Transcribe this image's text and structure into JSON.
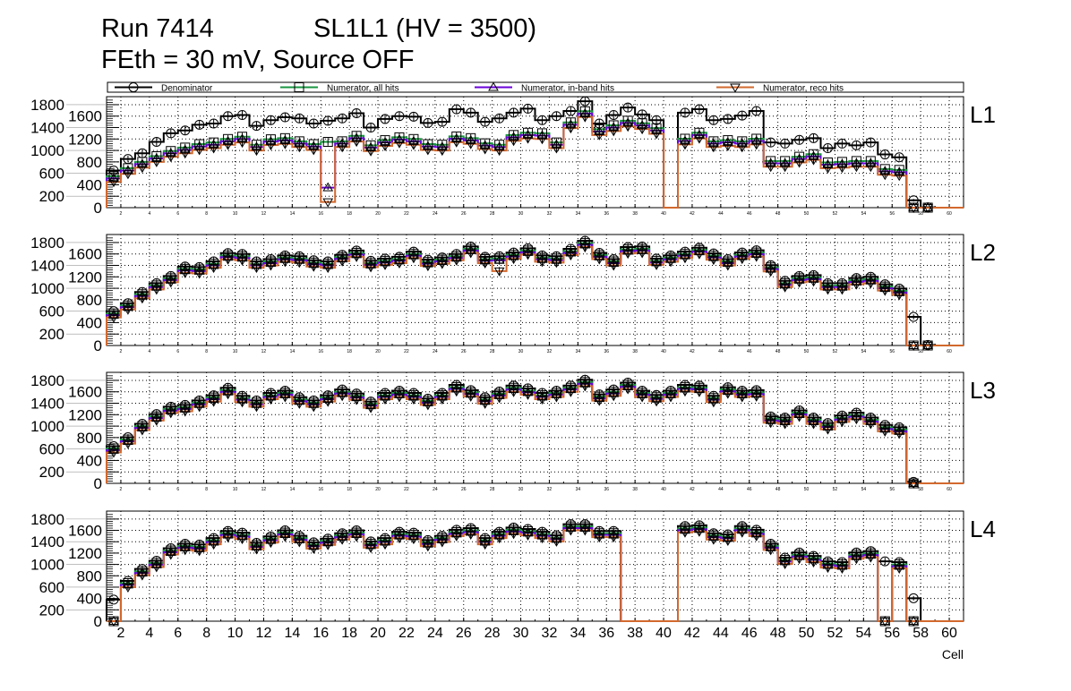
{
  "title": {
    "run": "Run 7414",
    "chamber": "SL1L1 (HV = 3500)",
    "conditions": "FEth = 30 mV, Source OFF"
  },
  "colors": {
    "denominator": "#000000",
    "numerator_all": "#1a9641",
    "numerator_inband": "#6a00d8",
    "numerator_reco": "#d2692e"
  },
  "chart_data": {
    "type": "bar",
    "style": "step-histogram",
    "xlabel": "Cell",
    "ylabel": "",
    "xlim": [
      1,
      61
    ],
    "ylim": [
      0,
      1940
    ],
    "grid": true,
    "legend_position": "top",
    "x_ticks": [
      "2",
      "4",
      "6",
      "8",
      "10",
      "12",
      "14",
      "16",
      "18",
      "20",
      "22",
      "24",
      "26",
      "28",
      "30",
      "32",
      "34",
      "36",
      "38",
      "40",
      "42",
      "44",
      "46",
      "48",
      "50",
      "52",
      "54",
      "56",
      "58",
      "60"
    ],
    "y_ticks": [
      "0",
      "200",
      "400",
      "600",
      "800",
      "1000",
      "1200",
      "1400",
      "1600",
      "1800"
    ],
    "legend": [
      {
        "key": "den",
        "label": "Denominator",
        "marker": "circle"
      },
      {
        "key": "all",
        "label": "Numerator, all hits",
        "marker": "square"
      },
      {
        "key": "inband",
        "label": "Numerator, in-band hits",
        "marker": "triangle-up"
      },
      {
        "key": "reco",
        "label": "Numerator, reco hits",
        "marker": "triangle-down"
      }
    ],
    "cells": [
      1,
      2,
      3,
      4,
      5,
      6,
      7,
      8,
      9,
      10,
      11,
      12,
      13,
      14,
      15,
      16,
      17,
      18,
      19,
      20,
      21,
      22,
      23,
      24,
      25,
      26,
      27,
      28,
      29,
      30,
      31,
      32,
      33,
      34,
      35,
      36,
      37,
      38,
      39,
      40,
      41,
      42,
      43,
      44,
      45,
      46,
      47,
      48,
      49,
      50,
      51,
      52,
      53,
      54,
      55,
      56,
      57,
      58,
      59,
      60
    ],
    "panels": [
      {
        "label": "L1",
        "series": {
          "den": [
            650,
            850,
            950,
            1150,
            1300,
            1350,
            1450,
            1470,
            1600,
            1620,
            1430,
            1530,
            1580,
            1560,
            1470,
            1520,
            1560,
            1650,
            1400,
            1550,
            1600,
            1590,
            1480,
            1500,
            1720,
            1660,
            1500,
            1560,
            1660,
            1730,
            1530,
            1600,
            1690,
            1860,
            1470,
            1620,
            1750,
            1630,
            1530,
            0,
            1660,
            1720,
            1530,
            1550,
            1610,
            1690,
            1140,
            1120,
            1185,
            1215,
            1040,
            1120,
            1090,
            1140,
            930,
            880,
            130,
            5,
            0,
            0
          ],
          "all": [
            550,
            690,
            800,
            900,
            990,
            1050,
            1110,
            1140,
            1200,
            1240,
            1100,
            1195,
            1215,
            1160,
            1110,
            1150,
            1160,
            1255,
            1090,
            1180,
            1230,
            1200,
            1110,
            1100,
            1245,
            1215,
            1125,
            1100,
            1270,
            1310,
            1300,
            1140,
            1490,
            1685,
            1370,
            1440,
            1520,
            1475,
            1390,
            0,
            1205,
            1310,
            1160,
            1180,
            1160,
            1205,
            815,
            815,
            890,
            935,
            790,
            800,
            815,
            815,
            675,
            660,
            0,
            0,
            0,
            0
          ],
          "inband": [
            510,
            650,
            760,
            860,
            950,
            1010,
            1070,
            1100,
            1160,
            1200,
            1060,
            1155,
            1175,
            1120,
            1070,
            350,
            1120,
            1215,
            1050,
            1140,
            1190,
            1160,
            1070,
            1060,
            1205,
            1175,
            1085,
            1060,
            1230,
            1270,
            1260,
            1100,
            1450,
            1645,
            1330,
            1400,
            1480,
            1435,
            1350,
            0,
            1165,
            1270,
            1120,
            1140,
            1120,
            1165,
            775,
            775,
            850,
            895,
            750,
            760,
            775,
            775,
            635,
            620,
            0,
            0,
            0,
            0
          ],
          "reco": [
            450,
            590,
            700,
            800,
            890,
            950,
            1010,
            1040,
            1100,
            1140,
            1000,
            1095,
            1115,
            1060,
            1010,
            100,
            1060,
            1155,
            990,
            1080,
            1130,
            1100,
            1010,
            1000,
            1145,
            1115,
            1025,
            1000,
            1170,
            1210,
            1200,
            1040,
            1390,
            1585,
            1270,
            1340,
            1420,
            1375,
            1290,
            0,
            1105,
            1210,
            1060,
            1080,
            1060,
            1105,
            715,
            715,
            790,
            835,
            690,
            700,
            715,
            715,
            575,
            560,
            0,
            0,
            0,
            0
          ]
        }
      },
      {
        "label": "L2",
        "series": {
          "den": [
            600,
            740,
            935,
            1090,
            1215,
            1380,
            1370,
            1470,
            1615,
            1600,
            1470,
            1510,
            1575,
            1560,
            1490,
            1470,
            1585,
            1660,
            1480,
            1520,
            1550,
            1640,
            1500,
            1540,
            1600,
            1730,
            1550,
            1560,
            1625,
            1700,
            1575,
            1560,
            1690,
            1830,
            1620,
            1510,
            1720,
            1730,
            1520,
            1575,
            1640,
            1710,
            1610,
            1510,
            1625,
            1665,
            1405,
            1130,
            1215,
            1230,
            1090,
            1090,
            1180,
            1200,
            1070,
            995,
            500,
            10,
            0,
            0
          ],
          "all": [
            560,
            700,
            895,
            1050,
            1175,
            1340,
            1330,
            1430,
            1575,
            1560,
            1430,
            1470,
            1535,
            1520,
            1450,
            1430,
            1545,
            1620,
            1440,
            1480,
            1510,
            1600,
            1460,
            1500,
            1560,
            1690,
            1510,
            1520,
            1585,
            1660,
            1535,
            1520,
            1650,
            1790,
            1580,
            1470,
            1680,
            1690,
            1480,
            1535,
            1600,
            1670,
            1570,
            1470,
            1585,
            1625,
            1365,
            1090,
            1175,
            1190,
            1050,
            1050,
            1140,
            1160,
            1030,
            955,
            0,
            0,
            0,
            0
          ],
          "inband": [
            530,
            670,
            865,
            1020,
            1145,
            1310,
            1300,
            1400,
            1545,
            1530,
            1400,
            1440,
            1505,
            1490,
            1420,
            1400,
            1515,
            1590,
            1410,
            1450,
            1480,
            1570,
            1430,
            1470,
            1530,
            1660,
            1480,
            1490,
            1555,
            1630,
            1505,
            1490,
            1620,
            1760,
            1550,
            1440,
            1650,
            1660,
            1450,
            1505,
            1570,
            1640,
            1540,
            1440,
            1555,
            1595,
            1335,
            1060,
            1145,
            1160,
            1020,
            1020,
            1110,
            1130,
            1000,
            925,
            0,
            0,
            0,
            0
          ],
          "reco": [
            490,
            630,
            825,
            980,
            1105,
            1270,
            1260,
            1360,
            1505,
            1490,
            1360,
            1400,
            1465,
            1450,
            1380,
            1360,
            1475,
            1550,
            1370,
            1410,
            1440,
            1530,
            1390,
            1430,
            1490,
            1620,
            1440,
            1300,
            1515,
            1590,
            1465,
            1450,
            1580,
            1720,
            1510,
            1400,
            1610,
            1620,
            1410,
            1465,
            1530,
            1600,
            1500,
            1400,
            1515,
            1555,
            1295,
            1020,
            1105,
            1120,
            980,
            980,
            1070,
            1090,
            960,
            885,
            0,
            0,
            0,
            0
          ]
        }
      },
      {
        "label": "L3",
        "series": {
          "den": [
            650,
            805,
            1040,
            1210,
            1340,
            1370,
            1450,
            1540,
            1670,
            1530,
            1450,
            1580,
            1620,
            1505,
            1450,
            1540,
            1640,
            1570,
            1430,
            1580,
            1620,
            1580,
            1480,
            1580,
            1720,
            1630,
            1505,
            1605,
            1710,
            1660,
            1580,
            1620,
            1710,
            1810,
            1555,
            1640,
            1760,
            1620,
            1545,
            1620,
            1720,
            1710,
            1530,
            1680,
            1620,
            1630,
            1170,
            1150,
            1275,
            1150,
            1055,
            1185,
            1235,
            1150,
            1020,
            980,
            25,
            0,
            0,
            0
          ],
          "all": [
            610,
            765,
            1000,
            1170,
            1300,
            1330,
            1410,
            1500,
            1630,
            1490,
            1410,
            1540,
            1580,
            1465,
            1410,
            1500,
            1600,
            1530,
            1390,
            1540,
            1580,
            1540,
            1440,
            1540,
            1680,
            1590,
            1465,
            1565,
            1670,
            1620,
            1540,
            1580,
            1670,
            1770,
            1515,
            1600,
            1720,
            1580,
            1505,
            1580,
            1680,
            1670,
            1490,
            1640,
            1580,
            1590,
            1130,
            1110,
            1235,
            1110,
            1015,
            1145,
            1195,
            1110,
            980,
            940,
            0,
            0,
            0,
            0
          ],
          "inband": [
            580,
            735,
            970,
            1140,
            1270,
            1300,
            1380,
            1470,
            1600,
            1460,
            1380,
            1510,
            1550,
            1435,
            1380,
            1470,
            1570,
            1500,
            1360,
            1510,
            1550,
            1510,
            1410,
            1510,
            1650,
            1560,
            1435,
            1535,
            1640,
            1590,
            1510,
            1550,
            1640,
            1740,
            1485,
            1570,
            1690,
            1550,
            1475,
            1550,
            1650,
            1640,
            1460,
            1610,
            1550,
            1560,
            1100,
            1080,
            1205,
            1080,
            985,
            1115,
            1165,
            1080,
            950,
            910,
            0,
            0,
            0,
            0
          ],
          "reco": [
            540,
            695,
            930,
            1100,
            1230,
            1260,
            1340,
            1430,
            1560,
            1420,
            1340,
            1470,
            1510,
            1395,
            1340,
            1430,
            1530,
            1460,
            1320,
            1470,
            1510,
            1470,
            1370,
            1470,
            1610,
            1520,
            1395,
            1495,
            1600,
            1550,
            1470,
            1510,
            1600,
            1700,
            1445,
            1530,
            1650,
            1510,
            1435,
            1510,
            1610,
            1600,
            1420,
            1570,
            1510,
            1520,
            1060,
            1040,
            1165,
            1040,
            945,
            1075,
            1125,
            1040,
            910,
            870,
            0,
            0,
            0,
            0
          ]
        }
      },
      {
        "label": "L4",
        "series": {
          "den": [
            380,
            710,
            920,
            1065,
            1285,
            1365,
            1350,
            1465,
            1590,
            1560,
            1380,
            1495,
            1600,
            1505,
            1390,
            1455,
            1550,
            1600,
            1405,
            1465,
            1575,
            1560,
            1430,
            1505,
            1610,
            1640,
            1465,
            1575,
            1650,
            1625,
            1575,
            1515,
            1710,
            1710,
            1590,
            1590,
            0,
            0,
            0,
            0,
            1675,
            1690,
            1550,
            1530,
            1675,
            1610,
            1365,
            1120,
            1210,
            1150,
            1055,
            1040,
            1210,
            1235,
            1055,
            1040,
            405,
            0,
            0,
            0
          ],
          "all": [
            0,
            670,
            880,
            1025,
            1245,
            1325,
            1310,
            1425,
            1550,
            1520,
            1340,
            1455,
            1560,
            1465,
            1350,
            1415,
            1510,
            1560,
            1365,
            1425,
            1535,
            1520,
            1390,
            1465,
            1570,
            1600,
            1425,
            1535,
            1610,
            1585,
            1535,
            1475,
            1670,
            1670,
            1550,
            1550,
            0,
            0,
            0,
            0,
            1635,
            1650,
            1510,
            1490,
            1635,
            1570,
            1325,
            1080,
            1170,
            1110,
            1015,
            1000,
            1170,
            1195,
            0,
            1000,
            0,
            0,
            0,
            0
          ],
          "inband": [
            0,
            640,
            850,
            995,
            1215,
            1295,
            1280,
            1395,
            1520,
            1490,
            1310,
            1425,
            1530,
            1435,
            1320,
            1385,
            1480,
            1530,
            1335,
            1395,
            1505,
            1490,
            1360,
            1435,
            1540,
            1570,
            1395,
            1505,
            1580,
            1555,
            1505,
            1445,
            1640,
            1640,
            1520,
            1520,
            0,
            0,
            0,
            0,
            1605,
            1620,
            1480,
            1460,
            1605,
            1540,
            1295,
            1050,
            1140,
            1080,
            985,
            970,
            1140,
            1165,
            0,
            970,
            0,
            0,
            0,
            0
          ],
          "reco": [
            0,
            600,
            810,
            955,
            1175,
            1255,
            1240,
            1355,
            1480,
            1450,
            1270,
            1385,
            1490,
            1395,
            1280,
            1345,
            1440,
            1490,
            1295,
            1355,
            1465,
            1450,
            1320,
            1395,
            1500,
            1530,
            1355,
            1465,
            1540,
            1515,
            1465,
            1405,
            1600,
            1600,
            1480,
            1480,
            0,
            0,
            0,
            0,
            1565,
            1580,
            1440,
            1420,
            1565,
            1500,
            1255,
            1010,
            1100,
            1040,
            945,
            930,
            1100,
            1125,
            0,
            930,
            0,
            0,
            0,
            0
          ]
        }
      }
    ]
  }
}
